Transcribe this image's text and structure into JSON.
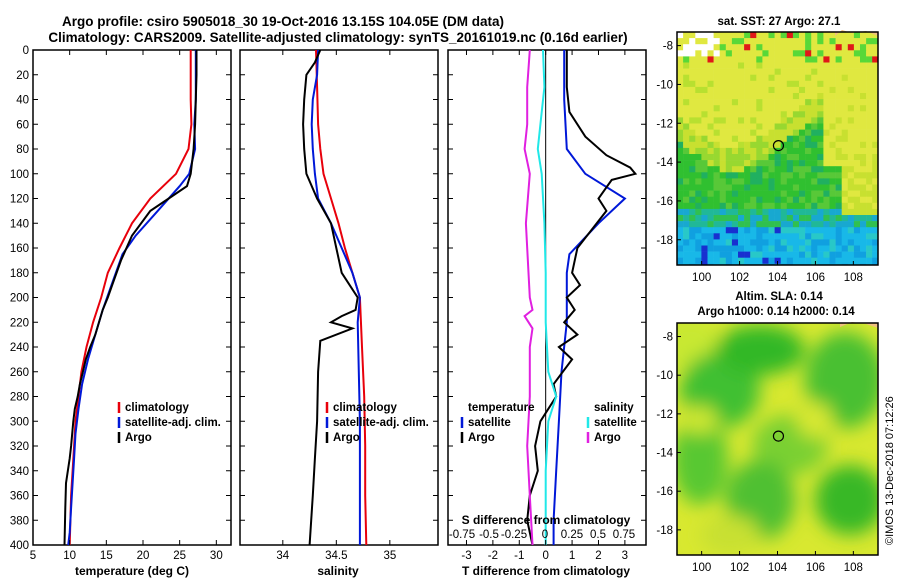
{
  "titles": {
    "line1": "Argo profile: csiro 5905018_30 19-Oct-2016 13.15S 104.05E (DM data)",
    "line2": "Climatology: CARS2009. Satellite-adjusted climatology: synTS_20161019.nc (0.16d earlier)"
  },
  "side_text": "©IMOS 13-Dec-2018 07:12:26",
  "colors": {
    "climatology": "#e8000b",
    "satellite": "#0018d8",
    "argo": "#000000",
    "s_satellite": "#20e8e8",
    "s_argo": "#e020e0"
  },
  "depth_ticks": [
    0,
    20,
    40,
    60,
    80,
    100,
    120,
    140,
    160,
    180,
    200,
    220,
    240,
    260,
    280,
    300,
    320,
    340,
    360,
    380,
    400
  ],
  "chart_data": [
    {
      "type": "line",
      "name": "temperature",
      "xlabel": "temperature (deg C)",
      "ylabel": "depth",
      "xlim": [
        5,
        32
      ],
      "ylim": [
        400,
        0
      ],
      "xticks": [
        5,
        10,
        15,
        20,
        25,
        30
      ],
      "legend": [
        "climatology",
        "satellite-adj. clim.",
        "Argo"
      ],
      "series": [
        {
          "name": "climatology",
          "color": "climatology",
          "points": [
            [
              26.5,
              0
            ],
            [
              26.5,
              40
            ],
            [
              26.6,
              60
            ],
            [
              26.2,
              80
            ],
            [
              24.5,
              100
            ],
            [
              21,
              120
            ],
            [
              18.5,
              140
            ],
            [
              16.8,
              160
            ],
            [
              15.2,
              180
            ],
            [
              14.3,
              200
            ],
            [
              13.2,
              220
            ],
            [
              12.3,
              240
            ],
            [
              11.6,
              260
            ],
            [
              11.2,
              280
            ],
            [
              10.8,
              300
            ],
            [
              10.6,
              320
            ],
            [
              10.4,
              340
            ],
            [
              10.2,
              360
            ],
            [
              10.1,
              380
            ],
            [
              10,
              400
            ]
          ]
        },
        {
          "name": "satellite",
          "color": "satellite",
          "points": [
            [
              27.2,
              0
            ],
            [
              27.2,
              20
            ],
            [
              27.2,
              40
            ],
            [
              27,
              60
            ],
            [
              27.1,
              80
            ],
            [
              26.3,
              100
            ],
            [
              25,
              110
            ],
            [
              22,
              130
            ],
            [
              19,
              150
            ],
            [
              17.2,
              165
            ],
            [
              15.7,
              190
            ],
            [
              14.5,
              210
            ],
            [
              13.5,
              230
            ],
            [
              12.5,
              250
            ],
            [
              11.7,
              270
            ],
            [
              11.2,
              290
            ],
            [
              10.8,
              310
            ],
            [
              10.6,
              330
            ],
            [
              10.4,
              350
            ],
            [
              10.2,
              370
            ],
            [
              10,
              390
            ],
            [
              9.8,
              400
            ]
          ]
        },
        {
          "name": "Argo",
          "color": "argo",
          "points": [
            [
              27.3,
              0
            ],
            [
              27.3,
              20
            ],
            [
              27.2,
              40
            ],
            [
              27.1,
              60
            ],
            [
              26.9,
              80
            ],
            [
              26.5,
              100
            ],
            [
              26,
              110
            ],
            [
              23.5,
              120
            ],
            [
              21,
              130
            ],
            [
              18.5,
              150
            ],
            [
              17,
              170
            ],
            [
              15.8,
              190
            ],
            [
              15.2,
              200
            ],
            [
              14.5,
              210
            ],
            [
              13.5,
              230
            ],
            [
              12.8,
              240
            ],
            [
              12.2,
              250
            ],
            [
              11.8,
              260
            ],
            [
              11.4,
              270
            ],
            [
              11.1,
              280
            ],
            [
              10.7,
              290
            ],
            [
              10.5,
              300
            ],
            [
              10.2,
              320
            ],
            [
              10,
              330
            ],
            [
              9.5,
              350
            ],
            [
              9.4,
              370
            ],
            [
              9.3,
              400
            ]
          ]
        }
      ]
    },
    {
      "type": "line",
      "name": "salinity",
      "xlabel": "salinity",
      "ylabel": "depth",
      "xlim": [
        33.6,
        35.45
      ],
      "ylim": [
        400,
        0
      ],
      "xticks": [
        34,
        34.5,
        35
      ],
      "legend": [
        "climatology",
        "satellite-adj. clim.",
        "Argo"
      ],
      "series": [
        {
          "name": "climatology",
          "color": "climatology",
          "points": [
            [
              34.31,
              0
            ],
            [
              34.32,
              30
            ],
            [
              34.33,
              60
            ],
            [
              34.35,
              80
            ],
            [
              34.38,
              100
            ],
            [
              34.45,
              120
            ],
            [
              34.52,
              140
            ],
            [
              34.58,
              160
            ],
            [
              34.65,
              180
            ],
            [
              34.72,
              200
            ],
            [
              34.74,
              240
            ],
            [
              34.76,
              280
            ],
            [
              34.77,
              320
            ],
            [
              34.77,
              360
            ],
            [
              34.78,
              400
            ]
          ]
        },
        {
          "name": "satellite",
          "color": "satellite",
          "points": [
            [
              34.33,
              0
            ],
            [
              34.32,
              20
            ],
            [
              34.28,
              40
            ],
            [
              34.27,
              60
            ],
            [
              34.28,
              80
            ],
            [
              34.3,
              100
            ],
            [
              34.33,
              120
            ],
            [
              34.45,
              140
            ],
            [
              34.55,
              160
            ],
            [
              34.65,
              180
            ],
            [
              34.72,
              200
            ],
            [
              34.7,
              220
            ],
            [
              34.71,
              260
            ],
            [
              34.72,
              300
            ],
            [
              34.72,
              340
            ],
            [
              34.72,
              380
            ],
            [
              34.72,
              400
            ]
          ]
        },
        {
          "name": "Argo",
          "color": "argo",
          "points": [
            [
              34.35,
              0
            ],
            [
              34.3,
              10
            ],
            [
              34.22,
              20
            ],
            [
              34.2,
              40
            ],
            [
              34.19,
              60
            ],
            [
              34.2,
              80
            ],
            [
              34.22,
              100
            ],
            [
              34.32,
              120
            ],
            [
              34.45,
              140
            ],
            [
              34.5,
              160
            ],
            [
              34.55,
              180
            ],
            [
              34.7,
              200
            ],
            [
              34.68,
              210
            ],
            [
              34.55,
              215
            ],
            [
              34.45,
              220
            ],
            [
              34.65,
              225
            ],
            [
              34.35,
              235
            ],
            [
              34.33,
              260
            ],
            [
              34.32,
              300
            ],
            [
              34.3,
              330
            ],
            [
              34.28,
              360
            ],
            [
              34.25,
              400
            ]
          ]
        }
      ]
    },
    {
      "type": "line",
      "name": "difference",
      "xlabel": "T difference from climatology",
      "ylabel": "depth",
      "xlim": [
        -3.7,
        3.8
      ],
      "ylim": [
        400,
        0
      ],
      "xticks": [
        -3,
        -2,
        -1,
        0,
        1,
        2,
        3
      ],
      "top_axis_label": "S difference from climatology",
      "top_ticks": [
        "-0.75",
        "-0.5",
        "-0.25",
        "0",
        "0.25",
        "0.5",
        "0.75"
      ],
      "legend_left_header": "temperature",
      "legend_right_header": "salinity",
      "legend": [
        "satellite",
        "Argo",
        "satellite",
        "Argo"
      ],
      "series": [
        {
          "name": "T satellite",
          "color": "satellite",
          "points": [
            [
              0.7,
              0
            ],
            [
              0.7,
              40
            ],
            [
              0.8,
              80
            ],
            [
              1.5,
              100
            ],
            [
              3,
              120
            ],
            [
              2,
              140
            ],
            [
              0.9,
              165
            ],
            [
              0.8,
              180
            ],
            [
              0.8,
              220
            ],
            [
              0.6,
              260
            ],
            [
              0.5,
              300
            ],
            [
              0.4,
              340
            ],
            [
              0.3,
              380
            ],
            [
              0.3,
              400
            ]
          ]
        },
        {
          "name": "T Argo",
          "color": "argo",
          "points": [
            [
              0.8,
              0
            ],
            [
              0.8,
              30
            ],
            [
              0.9,
              50
            ],
            [
              1.5,
              70
            ],
            [
              2.3,
              85
            ],
            [
              3.2,
              95
            ],
            [
              3.4,
              100
            ],
            [
              2.5,
              105
            ],
            [
              2,
              120
            ],
            [
              2.3,
              130
            ],
            [
              1.2,
              160
            ],
            [
              1,
              180
            ],
            [
              1.3,
              190
            ],
            [
              0.8,
              200
            ],
            [
              1.1,
              210
            ],
            [
              0.7,
              220
            ],
            [
              1.2,
              230
            ],
            [
              0.5,
              240
            ],
            [
              1,
              250
            ],
            [
              0.3,
              270
            ],
            [
              0.4,
              280
            ],
            [
              -0.2,
              300
            ],
            [
              -0.4,
              320
            ],
            [
              -0.3,
              340
            ],
            [
              -0.6,
              360
            ],
            [
              -0.7,
              380
            ],
            [
              -0.5,
              400
            ]
          ]
        },
        {
          "name": "S satellite",
          "color": "s_satellite",
          "points": [
            [
              -0.1,
              0
            ],
            [
              -0.05,
              30
            ],
            [
              -0.2,
              60
            ],
            [
              -0.3,
              80
            ],
            [
              -0.15,
              100
            ],
            [
              -0.05,
              140
            ],
            [
              0,
              180
            ],
            [
              0,
              220
            ],
            [
              0.1,
              260
            ],
            [
              0.4,
              280
            ],
            [
              0.1,
              300
            ],
            [
              0,
              340
            ],
            [
              0,
              400
            ]
          ]
        },
        {
          "name": "S Argo",
          "color": "s_argo",
          "points": [
            [
              -0.6,
              0
            ],
            [
              -0.7,
              30
            ],
            [
              -0.7,
              60
            ],
            [
              -0.8,
              80
            ],
            [
              -0.6,
              100
            ],
            [
              -0.75,
              140
            ],
            [
              -0.65,
              180
            ],
            [
              -0.6,
              200
            ],
            [
              -0.5,
              210
            ],
            [
              -0.8,
              215
            ],
            [
              -0.5,
              225
            ],
            [
              -0.6,
              240
            ],
            [
              -0.6,
              280
            ],
            [
              -0.7,
              320
            ],
            [
              -0.6,
              360
            ],
            [
              -0.5,
              400
            ]
          ]
        }
      ]
    },
    {
      "type": "heatmap",
      "name": "sst map",
      "title": "sat. SST: 27 Argo: 27.1",
      "xlim": [
        98.7,
        109.3
      ],
      "ylim": [
        -19.3,
        -7.3
      ],
      "xticks": [
        100,
        102,
        104,
        106,
        108
      ],
      "yticks": [
        -8,
        -10,
        -12,
        -14,
        -16,
        -18
      ],
      "argo_position": [
        104.05,
        -13.15
      ]
    },
    {
      "type": "heatmap",
      "name": "sla map",
      "title": "Altim. SLA: 0.14",
      "subtitle": "Argo h1000: 0.14 h2000: 0.14",
      "xlim": [
        98.7,
        109.3
      ],
      "ylim": [
        -19.3,
        -7.3
      ],
      "xticks": [
        100,
        102,
        104,
        106,
        108
      ],
      "yticks": [
        -8,
        -10,
        -12,
        -14,
        -16,
        -18
      ],
      "argo_position": [
        104.05,
        -13.15
      ]
    }
  ]
}
